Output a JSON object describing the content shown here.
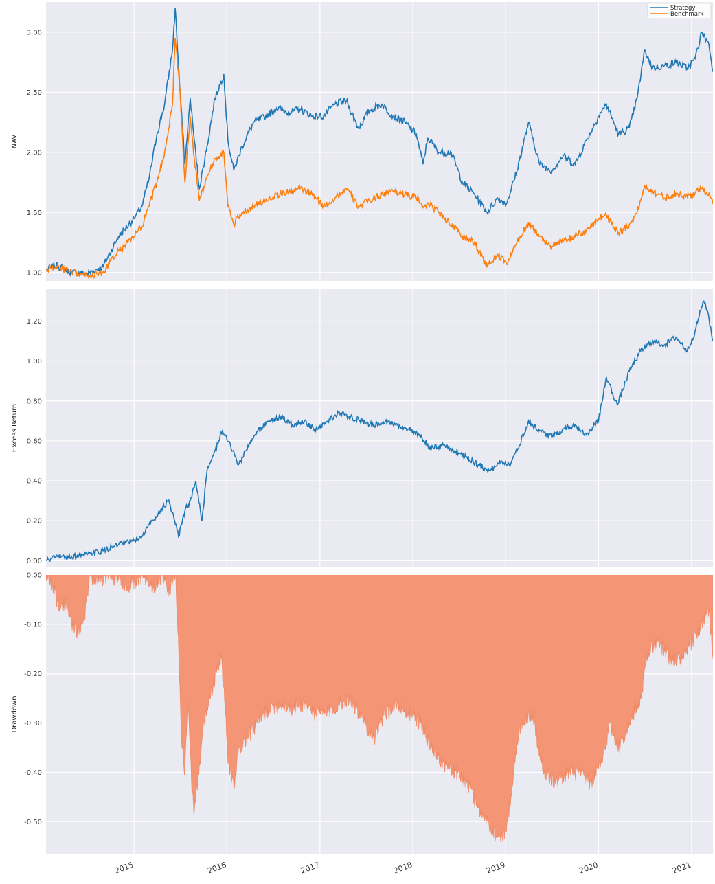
{
  "colors": {
    "strategy": "#1f77b4",
    "benchmark": "#ff7f0e",
    "drawdown": "#f4916f",
    "panel_bg": "#eaeaf2",
    "grid": "#ffffff"
  },
  "x_ticks": [
    "2015",
    "2016",
    "2017",
    "2018",
    "2019",
    "2020",
    "2021"
  ],
  "chart_data": [
    {
      "type": "line",
      "ylabel": "NAV",
      "ylim": [
        0.93,
        3.25
      ],
      "yticks": [
        "1.00",
        "1.50",
        "2.00",
        "2.50",
        "3.00"
      ],
      "x_range": [
        "2014-01-20",
        "2021-03-26"
      ],
      "legend_position": "top-right",
      "grid": true,
      "x": [
        "2014-01-20",
        "2014-03-01",
        "2014-05-01",
        "2014-07-01",
        "2014-09-01",
        "2014-11-01",
        "2015-01-01",
        "2015-02-01",
        "2015-03-01",
        "2015-04-01",
        "2015-05-01",
        "2015-06-01",
        "2015-06-12",
        "2015-07-01",
        "2015-07-20",
        "2015-08-10",
        "2015-08-26",
        "2015-09-15",
        "2015-10-15",
        "2015-11-15",
        "2015-12-20",
        "2016-01-05",
        "2016-01-28",
        "2016-03-01",
        "2016-04-15",
        "2016-06-01",
        "2016-07-15",
        "2016-09-01",
        "2016-10-15",
        "2016-12-01",
        "2017-01-15",
        "2017-03-01",
        "2017-04-15",
        "2017-06-01",
        "2017-07-15",
        "2017-09-01",
        "2017-10-15",
        "2017-12-01",
        "2018-01-15",
        "2018-02-10",
        "2018-03-01",
        "2018-04-15",
        "2018-06-01",
        "2018-07-15",
        "2018-09-01",
        "2018-10-20",
        "2018-12-01",
        "2019-01-04",
        "2019-02-15",
        "2019-04-01",
        "2019-05-15",
        "2019-07-01",
        "2019-08-15",
        "2019-10-01",
        "2019-11-15",
        "2020-01-01",
        "2020-02-01",
        "2020-03-20",
        "2020-05-01",
        "2020-06-01",
        "2020-07-01",
        "2020-08-01",
        "2020-09-15",
        "2020-11-01",
        "2020-12-15",
        "2021-01-15",
        "2021-02-10",
        "2021-03-10",
        "2021-03-26"
      ],
      "series": [
        {
          "name": "Strategy",
          "values": [
            1.02,
            1.06,
            1.0,
            0.99,
            1.05,
            1.3,
            1.45,
            1.55,
            1.78,
            2.15,
            2.4,
            2.85,
            3.2,
            2.5,
            1.9,
            2.45,
            2.1,
            1.7,
            2.05,
            2.45,
            2.65,
            2.1,
            1.85,
            2.05,
            2.25,
            2.3,
            2.37,
            2.33,
            2.36,
            2.3,
            2.3,
            2.4,
            2.43,
            2.2,
            2.35,
            2.4,
            2.3,
            2.25,
            2.15,
            1.9,
            2.12,
            2.0,
            2.0,
            1.75,
            1.65,
            1.5,
            1.62,
            1.57,
            1.85,
            2.25,
            1.9,
            1.85,
            1.97,
            1.9,
            2.1,
            2.3,
            2.4,
            2.15,
            2.2,
            2.45,
            2.85,
            2.7,
            2.72,
            2.75,
            2.7,
            2.78,
            3.0,
            2.9,
            2.67
          ]
        },
        {
          "name": "Benchmark",
          "values": [
            1.02,
            1.05,
            1.0,
            0.97,
            1.0,
            1.18,
            1.3,
            1.38,
            1.55,
            1.75,
            2.0,
            2.4,
            2.95,
            2.5,
            1.75,
            2.3,
            1.95,
            1.6,
            1.8,
            1.95,
            2.0,
            1.55,
            1.4,
            1.5,
            1.55,
            1.6,
            1.65,
            1.67,
            1.7,
            1.65,
            1.55,
            1.62,
            1.7,
            1.55,
            1.6,
            1.65,
            1.68,
            1.65,
            1.62,
            1.55,
            1.58,
            1.5,
            1.4,
            1.3,
            1.25,
            1.05,
            1.15,
            1.07,
            1.25,
            1.42,
            1.3,
            1.22,
            1.26,
            1.3,
            1.35,
            1.45,
            1.48,
            1.33,
            1.4,
            1.5,
            1.72,
            1.68,
            1.62,
            1.66,
            1.63,
            1.66,
            1.7,
            1.66,
            1.57
          ]
        }
      ]
    },
    {
      "type": "line",
      "ylabel": "Excess Return",
      "ylim": [
        -0.03,
        1.36
      ],
      "yticks": [
        "0.00",
        "0.20",
        "0.40",
        "0.60",
        "0.80",
        "1.00",
        "1.20"
      ],
      "grid": true,
      "x": [
        "2014-01-20",
        "2014-03-01",
        "2014-05-01",
        "2014-07-01",
        "2014-09-01",
        "2014-11-01",
        "2015-01-01",
        "2015-02-01",
        "2015-03-01",
        "2015-04-15",
        "2015-05-15",
        "2015-06-10",
        "2015-06-25",
        "2015-07-20",
        "2015-08-10",
        "2015-09-01",
        "2015-09-25",
        "2015-10-15",
        "2015-11-15",
        "2015-12-15",
        "2016-01-15",
        "2016-02-15",
        "2016-03-15",
        "2016-05-01",
        "2016-06-15",
        "2016-08-01",
        "2016-09-15",
        "2016-11-01",
        "2016-12-15",
        "2017-02-01",
        "2017-03-15",
        "2017-05-01",
        "2017-06-15",
        "2017-08-01",
        "2017-09-15",
        "2017-11-01",
        "2017-12-15",
        "2018-02-01",
        "2018-03-15",
        "2018-05-01",
        "2018-06-15",
        "2018-08-01",
        "2018-09-15",
        "2018-11-01",
        "2018-12-15",
        "2019-01-15",
        "2019-02-15",
        "2019-04-01",
        "2019-05-15",
        "2019-07-01",
        "2019-08-15",
        "2019-10-01",
        "2019-11-15",
        "2020-01-01",
        "2020-02-01",
        "2020-03-15",
        "2020-05-01",
        "2020-06-15",
        "2020-08-01",
        "2020-09-15",
        "2020-11-01",
        "2020-12-15",
        "2021-01-15",
        "2021-02-15",
        "2021-03-05",
        "2021-03-26"
      ],
      "series": [
        {
          "name": "",
          "values": [
            0.0,
            0.02,
            0.02,
            0.03,
            0.05,
            0.08,
            0.1,
            0.12,
            0.18,
            0.25,
            0.3,
            0.2,
            0.12,
            0.25,
            0.3,
            0.4,
            0.2,
            0.45,
            0.55,
            0.65,
            0.58,
            0.48,
            0.55,
            0.65,
            0.7,
            0.72,
            0.68,
            0.7,
            0.65,
            0.7,
            0.74,
            0.72,
            0.7,
            0.68,
            0.7,
            0.68,
            0.66,
            0.62,
            0.56,
            0.58,
            0.55,
            0.52,
            0.48,
            0.45,
            0.5,
            0.48,
            0.55,
            0.7,
            0.65,
            0.62,
            0.66,
            0.68,
            0.63,
            0.7,
            0.92,
            0.78,
            0.95,
            1.05,
            1.1,
            1.08,
            1.12,
            1.05,
            1.15,
            1.3,
            1.25,
            1.1
          ]
        }
      ]
    },
    {
      "type": "area",
      "ylabel": "Drawdown",
      "ylim": [
        -0.565,
        0.0
      ],
      "yticks": [
        "0.00",
        "-0.10",
        "-0.20",
        "-0.30",
        "-0.40",
        "-0.50"
      ],
      "grid": true,
      "x": [
        "2014-01-20",
        "2014-02-15",
        "2014-03-15",
        "2014-04-10",
        "2014-05-01",
        "2014-06-01",
        "2014-06-20",
        "2014-07-10",
        "2014-08-10",
        "2014-09-20",
        "2014-11-01",
        "2014-12-15",
        "2015-02-01",
        "2015-03-15",
        "2015-04-20",
        "2015-05-20",
        "2015-06-05",
        "2015-06-14",
        "2015-06-20",
        "2015-07-08",
        "2015-07-20",
        "2015-08-01",
        "2015-08-15",
        "2015-08-26",
        "2015-09-15",
        "2015-10-05",
        "2015-10-25",
        "2015-11-20",
        "2015-12-10",
        "2015-12-25",
        "2016-01-05",
        "2016-01-28",
        "2016-02-20",
        "2016-03-20",
        "2016-05-01",
        "2016-06-15",
        "2016-08-01",
        "2016-09-15",
        "2016-11-01",
        "2016-12-15",
        "2017-02-01",
        "2017-03-15",
        "2017-05-01",
        "2017-06-15",
        "2017-08-01",
        "2017-09-15",
        "2017-11-01",
        "2017-12-15",
        "2018-02-01",
        "2018-03-15",
        "2018-05-01",
        "2018-06-15",
        "2018-08-01",
        "2018-09-15",
        "2018-10-20",
        "2018-12-01",
        "2019-01-04",
        "2019-02-01",
        "2019-03-01",
        "2019-04-15",
        "2019-06-01",
        "2019-07-15",
        "2019-09-01",
        "2019-10-15",
        "2019-12-01",
        "2020-01-15",
        "2020-02-15",
        "2020-03-20",
        "2020-05-01",
        "2020-06-15",
        "2020-07-15",
        "2020-09-01",
        "2020-10-15",
        "2020-12-01",
        "2021-01-15",
        "2021-02-15",
        "2021-03-10",
        "2021-03-26"
      ],
      "values": [
        0.0,
        -0.02,
        -0.07,
        -0.05,
        -0.1,
        -0.12,
        -0.09,
        0.0,
        -0.01,
        0.0,
        -0.01,
        -0.02,
        0.0,
        -0.03,
        0.0,
        -0.04,
        0.0,
        0.0,
        -0.08,
        -0.35,
        -0.4,
        -0.25,
        -0.42,
        -0.48,
        -0.38,
        -0.3,
        -0.25,
        -0.2,
        -0.17,
        -0.26,
        -0.38,
        -0.43,
        -0.35,
        -0.33,
        -0.3,
        -0.27,
        -0.26,
        -0.27,
        -0.26,
        -0.28,
        -0.28,
        -0.26,
        -0.25,
        -0.29,
        -0.33,
        -0.28,
        -0.26,
        -0.28,
        -0.3,
        -0.35,
        -0.38,
        -0.4,
        -0.42,
        -0.47,
        -0.5,
        -0.53,
        -0.52,
        -0.4,
        -0.3,
        -0.28,
        -0.4,
        -0.42,
        -0.4,
        -0.4,
        -0.42,
        -0.38,
        -0.3,
        -0.35,
        -0.3,
        -0.25,
        -0.15,
        -0.14,
        -0.17,
        -0.17,
        -0.12,
        -0.1,
        -0.07,
        -0.17
      ]
    }
  ]
}
